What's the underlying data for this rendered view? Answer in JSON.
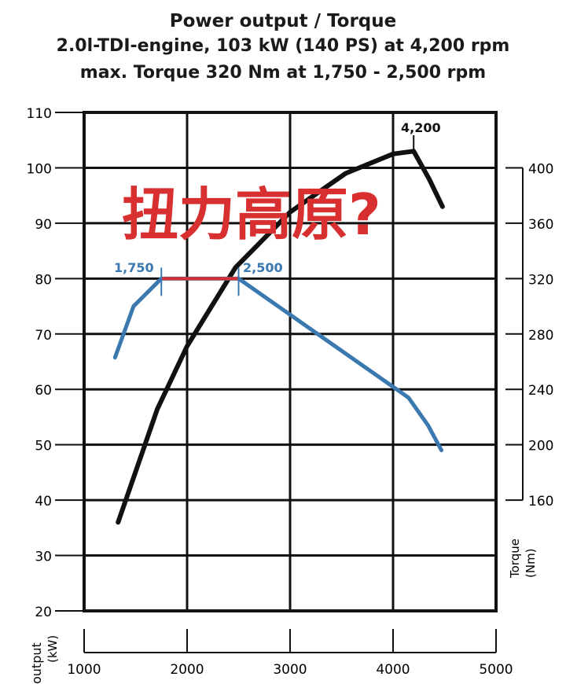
{
  "chart_data": {
    "type": "line",
    "title": "Power output / Torque",
    "subtitle_lines": [
      "2.0l-TDI-engine, 103 kW (140 PS) at 4,200 rpm",
      "max. Torque 320 Nm at 1,750 - 2,500 rpm"
    ],
    "xlabel": "",
    "ylabel_left": [
      "output",
      "(kW)"
    ],
    "ylabel_right": [
      "Torque",
      "(Nm)"
    ],
    "xlim": [
      1000,
      5000
    ],
    "ylim_left": [
      20,
      110
    ],
    "ylim_right": [
      160,
      400
    ],
    "x_ticks": [
      "1000",
      "2000",
      "3000",
      "4000",
      "5000"
    ],
    "y_ticks_left": [
      "20",
      "30",
      "40",
      "50",
      "60",
      "70",
      "80",
      "90",
      "100",
      "110"
    ],
    "y_ticks_right": [
      "160",
      "200",
      "240",
      "280",
      "320",
      "360",
      "400"
    ],
    "grid": true,
    "series": [
      {
        "name": "Power (kW)",
        "axis": "left",
        "color": "#111111",
        "x": [
          1330,
          1710,
          2000,
          2470,
          3000,
          3540,
          4000,
          4200,
          4350,
          4480
        ],
        "y": [
          36,
          56.4,
          67.8,
          82,
          92,
          99,
          102.5,
          103,
          98,
          93
        ]
      },
      {
        "name": "Torque (Nm)",
        "axis": "right",
        "color": "#3a78b0",
        "x": [
          1300,
          1480,
          1750,
          2500,
          4150,
          4340,
          4470
        ],
        "y": [
          263,
          300,
          320,
          320,
          234,
          214,
          196
        ]
      }
    ],
    "highlight": {
      "color": "#d83030",
      "x": [
        1750,
        2500
      ],
      "y_right": 320
    },
    "annotations": [
      {
        "text": "4,200",
        "x": 4200,
        "series": "Power (kW)"
      },
      {
        "text": "1,750",
        "x": 1750,
        "series": "Torque (Nm)"
      },
      {
        "text": "2,500",
        "x": 2500,
        "series": "Torque (Nm)"
      },
      {
        "text": "扭力高原?",
        "color": "#d83030"
      }
    ]
  }
}
